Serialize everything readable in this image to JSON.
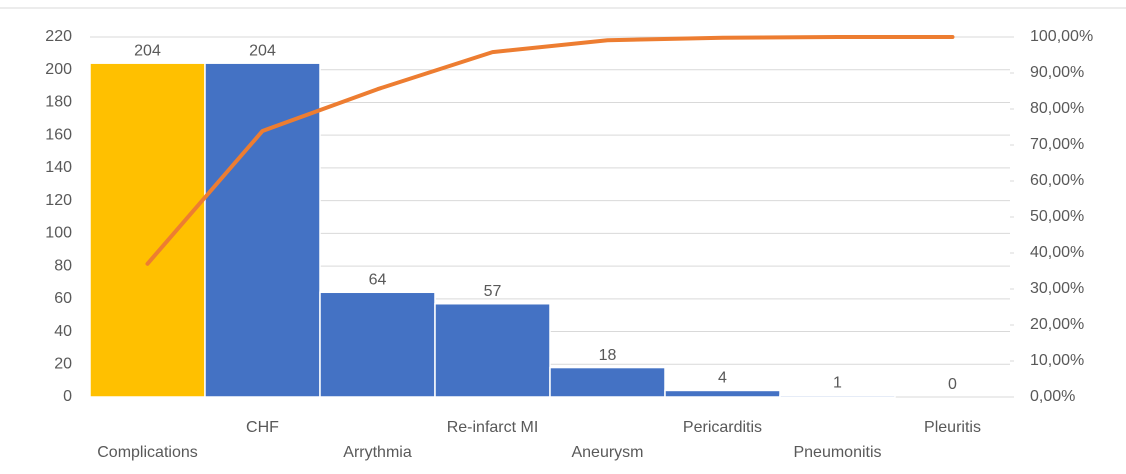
{
  "chart_data": {
    "type": "pareto",
    "categories": [
      "Complications",
      "CHF",
      "Arrythmia",
      "Re-infarct MI",
      "Aneurysm",
      "Pericarditis",
      "Pneumonitis",
      "Pleuritis"
    ],
    "series": [
      {
        "type": "bar",
        "values": [
          204,
          204,
          64,
          57,
          18,
          4,
          1,
          0
        ],
        "colors": [
          "#ffc000",
          "#4472c4",
          "#4472c4",
          "#4472c4",
          "#4472c4",
          "#4472c4",
          "#4472c4",
          "#4472c4"
        ]
      },
      {
        "type": "line",
        "axis": "y2",
        "color": "#ed7d31",
        "values": [
          37.0,
          73.9,
          85.5,
          95.8,
          99.1,
          99.8,
          100,
          100
        ]
      }
    ],
    "ylim": [
      0,
      220
    ],
    "yticks": [
      0,
      20,
      40,
      60,
      80,
      100,
      120,
      140,
      160,
      180,
      200,
      220
    ],
    "y2lim": [
      0,
      100
    ],
    "y2ticks": [
      {
        "value": 0,
        "label": "0,00%"
      },
      {
        "value": 10,
        "label": "10,00%"
      },
      {
        "value": 20,
        "label": "20,00%"
      },
      {
        "value": 30,
        "label": "30,00%"
      },
      {
        "value": 40,
        "label": "40,00%"
      },
      {
        "value": 50,
        "label": "50,00%"
      },
      {
        "value": 60,
        "label": "60,00%"
      },
      {
        "value": 70,
        "label": "70,00%"
      },
      {
        "value": 80,
        "label": "80,00%"
      },
      {
        "value": 90,
        "label": "90,00%"
      },
      {
        "value": 100,
        "label": "100,00%"
      }
    ],
    "grid": true
  }
}
